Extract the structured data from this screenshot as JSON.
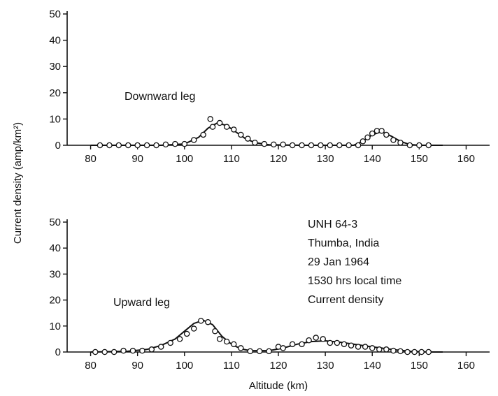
{
  "chart_data": [
    {
      "type": "scatter",
      "panel_label": "Downward leg",
      "xlim": [
        75,
        165
      ],
      "ylim": [
        0,
        50
      ],
      "xticks": [
        80,
        90,
        100,
        110,
        120,
        130,
        140,
        150,
        160
      ],
      "yticks": [
        0,
        10,
        20,
        30,
        40,
        50
      ],
      "points": [
        [
          82,
          0
        ],
        [
          84,
          0
        ],
        [
          86,
          0
        ],
        [
          88,
          0
        ],
        [
          90,
          0
        ],
        [
          92,
          0
        ],
        [
          94,
          0
        ],
        [
          96,
          0.3
        ],
        [
          98,
          0.5
        ],
        [
          100,
          0.5
        ],
        [
          102,
          2
        ],
        [
          104,
          4
        ],
        [
          105.5,
          10
        ],
        [
          106,
          7
        ],
        [
          107.5,
          8.5
        ],
        [
          109,
          7
        ],
        [
          110.5,
          6
        ],
        [
          112,
          4
        ],
        [
          113.5,
          2.5
        ],
        [
          115,
          1
        ],
        [
          117,
          0.5
        ],
        [
          119,
          0.3
        ],
        [
          121,
          0.3
        ],
        [
          123,
          0
        ],
        [
          125,
          0
        ],
        [
          127,
          0
        ],
        [
          129,
          0
        ],
        [
          131,
          0
        ],
        [
          133,
          0
        ],
        [
          135,
          0
        ],
        [
          137,
          0
        ],
        [
          138,
          1.5
        ],
        [
          139,
          3
        ],
        [
          140,
          4.5
        ],
        [
          141,
          5.5
        ],
        [
          142,
          5.5
        ],
        [
          143,
          4
        ],
        [
          144.5,
          2
        ],
        [
          146,
          1
        ],
        [
          148,
          0
        ],
        [
          150,
          0
        ],
        [
          152,
          0
        ]
      ],
      "curve": [
        [
          80,
          0
        ],
        [
          95,
          0
        ],
        [
          100,
          0.5
        ],
        [
          103,
          3
        ],
        [
          105,
          6.5
        ],
        [
          107,
          8.5
        ],
        [
          109,
          7.5
        ],
        [
          111,
          5
        ],
        [
          113,
          2.5
        ],
        [
          115,
          1
        ],
        [
          118,
          0.2
        ],
        [
          125,
          0
        ],
        [
          136,
          0
        ],
        [
          138,
          1.5
        ],
        [
          140,
          4
        ],
        [
          142,
          5.2
        ],
        [
          144,
          3.5
        ],
        [
          146,
          1.5
        ],
        [
          148,
          0.3
        ],
        [
          150,
          0
        ],
        [
          155,
          0
        ]
      ]
    },
    {
      "type": "scatter",
      "panel_label": "Upward leg",
      "xlim": [
        75,
        165
      ],
      "ylim": [
        0,
        50
      ],
      "xticks": [
        80,
        90,
        100,
        110,
        120,
        130,
        140,
        150,
        160
      ],
      "yticks": [
        0,
        10,
        20,
        30,
        40,
        50
      ],
      "xlabel": "Altitude (km)",
      "points": [
        [
          81,
          0
        ],
        [
          83,
          0
        ],
        [
          85,
          0
        ],
        [
          87,
          0.5
        ],
        [
          89,
          0.5
        ],
        [
          91,
          0.5
        ],
        [
          93,
          1
        ],
        [
          95,
          2
        ],
        [
          97,
          3.5
        ],
        [
          99,
          5
        ],
        [
          100.5,
          7
        ],
        [
          102,
          9
        ],
        [
          103.5,
          12
        ],
        [
          105,
          11.5
        ],
        [
          106.5,
          8
        ],
        [
          107.5,
          5
        ],
        [
          109,
          4
        ],
        [
          110.5,
          3
        ],
        [
          112,
          1.5
        ],
        [
          114,
          0.3
        ],
        [
          116,
          0.3
        ],
        [
          118,
          0.3
        ],
        [
          120,
          2
        ],
        [
          121,
          1.5
        ],
        [
          123,
          3
        ],
        [
          125,
          3
        ],
        [
          126.5,
          4.5
        ],
        [
          128,
          5.5
        ],
        [
          129.5,
          5
        ],
        [
          131,
          3.5
        ],
        [
          132.5,
          3.5
        ],
        [
          134,
          3
        ],
        [
          135.5,
          2.5
        ],
        [
          137,
          2
        ],
        [
          138.5,
          2
        ],
        [
          140,
          1.5
        ],
        [
          141.5,
          1
        ],
        [
          143,
          1
        ],
        [
          144.5,
          0.5
        ],
        [
          146,
          0.3
        ],
        [
          147.5,
          0
        ],
        [
          149,
          0
        ],
        [
          150.5,
          0
        ],
        [
          152,
          0
        ]
      ],
      "curve": [
        [
          80,
          0
        ],
        [
          88,
          0.3
        ],
        [
          92,
          1
        ],
        [
          95,
          2.5
        ],
        [
          98,
          5
        ],
        [
          100,
          8
        ],
        [
          102,
          11
        ],
        [
          104,
          12.2
        ],
        [
          106,
          10.5
        ],
        [
          108,
          6
        ],
        [
          110,
          3
        ],
        [
          112,
          1.2
        ],
        [
          114,
          0.5
        ],
        [
          118,
          0.5
        ],
        [
          121,
          1.5
        ],
        [
          124,
          3
        ],
        [
          127,
          4
        ],
        [
          130,
          4.3
        ],
        [
          133,
          3.8
        ],
        [
          136,
          3
        ],
        [
          139,
          2.2
        ],
        [
          142,
          1.5
        ],
        [
          145,
          0.8
        ],
        [
          148,
          0.3
        ],
        [
          152,
          0
        ],
        [
          155,
          0
        ]
      ]
    }
  ],
  "shared_ylabel": "Current density (amp/km²)",
  "annotation_lines": [
    "UNH 64-3",
    "Thumba, India",
    "29 Jan 1964",
    "1530 hrs  local time",
    "Current density"
  ]
}
